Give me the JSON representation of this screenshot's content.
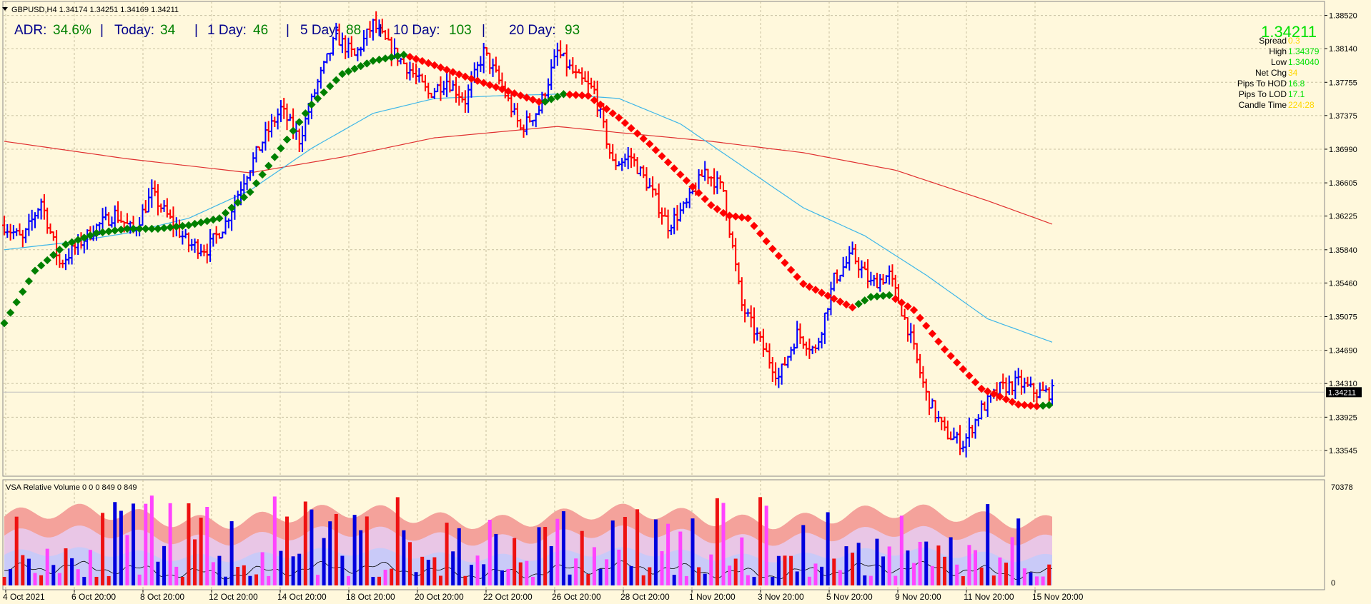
{
  "header": {
    "symbol_line": "GBPUSD,H4  1.34174 1.34251 1.34169 1.34211",
    "menu_arrow_icon": "triangle-down-icon"
  },
  "adr_line": {
    "adr_label": "ADR:",
    "adr_value": "34.6%",
    "sep1": "|",
    "today_label": "Today:",
    "today_value": "34",
    "sep2": "|",
    "d1_label": "1 Day:",
    "d1_value": "46",
    "sep3": "|",
    "d5_label": "5 Day:",
    "d5_value": "88",
    "sep4": "|",
    "d10_label": "10 Day:",
    "d10_value": "103",
    "sep5": "|",
    "d20_label": "20 Day:",
    "d20_value": "93"
  },
  "info_panel": {
    "price": "1.34211",
    "rows": [
      {
        "label": "Spread",
        "value": "0.3",
        "color": "#ffd700"
      },
      {
        "label": "High",
        "value": "1.34379",
        "color": "#00e000"
      },
      {
        "label": "Low",
        "value": "1.34040",
        "color": "#00e000"
      },
      {
        "label": "Net Chg",
        "value": "34",
        "color": "#ffd700"
      },
      {
        "label": "Pips To HOD",
        "value": "16.8",
        "color": "#00e000"
      },
      {
        "label": "Pips To LOD",
        "value": "17.1",
        "color": "#00e000"
      },
      {
        "label": "Candle Time",
        "value": "224:28",
        "color": "#ffd700"
      }
    ]
  },
  "volume_panel": {
    "title": "VSA Relative Volume 0 0 0 849 0 849",
    "max_label": "70378",
    "min_label": "0"
  },
  "colors": {
    "background": "#fff8dc",
    "grid": "#c8c0a0",
    "bull_bar": "#0000ff",
    "bear_bar": "#ff0000",
    "trend_up": "#008000",
    "trend_down": "#ff0000",
    "ma_fast": "#3eb6e8",
    "ma_slow": "#e03030",
    "accent_green": "#008000",
    "price_green": "#00e000",
    "price_label_bg": "#000000"
  },
  "chart_data": {
    "type": "line",
    "ylim": [
      1.3325,
      1.3868
    ],
    "price_ticks": [
      "1.38520",
      "1.38140",
      "1.37755",
      "1.37375",
      "1.36990",
      "1.36605",
      "1.36225",
      "1.35840",
      "1.35460",
      "1.35075",
      "1.34690",
      "1.34310",
      "1.33925",
      "1.33545"
    ],
    "current_price": 1.34211,
    "current_price_label": "1.34211",
    "x_ticks": [
      "4 Oct 2021",
      "6 Oct 20:00",
      "8 Oct 20:00",
      "12 Oct 20:00",
      "14 Oct 20:00",
      "18 Oct 20:00",
      "20 Oct 20:00",
      "22 Oct 20:00",
      "26 Oct 20:00",
      "28 Oct 20:00",
      "1 Nov 20:00",
      "3 Nov 20:00",
      "5 Nov 20:00",
      "9 Nov 20:00",
      "11 Nov 20:00",
      "15 Nov 20:00"
    ],
    "price_path": [
      [
        0,
        1.3612
      ],
      [
        6,
        1.3595
      ],
      [
        12,
        1.364
      ],
      [
        18,
        1.3568
      ],
      [
        24,
        1.359
      ],
      [
        30,
        1.361
      ],
      [
        36,
        1.3625
      ],
      [
        42,
        1.3605
      ],
      [
        48,
        1.3648
      ],
      [
        54,
        1.3618
      ],
      [
        60,
        1.359
      ],
      [
        66,
        1.3585
      ],
      [
        72,
        1.3615
      ],
      [
        78,
        1.3665
      ],
      [
        84,
        1.3708
      ],
      [
        90,
        1.3745
      ],
      [
        96,
        1.371
      ],
      [
        102,
        1.3775
      ],
      [
        108,
        1.3828
      ],
      [
        114,
        1.3805
      ],
      [
        120,
        1.3842
      ],
      [
        126,
        1.3812
      ],
      [
        132,
        1.379
      ],
      [
        138,
        1.3762
      ],
      [
        144,
        1.3778
      ],
      [
        150,
        1.3755
      ],
      [
        156,
        1.381
      ],
      [
        162,
        1.377
      ],
      [
        168,
        1.3722
      ],
      [
        174,
        1.3745
      ],
      [
        180,
        1.381
      ],
      [
        186,
        1.3782
      ],
      [
        192,
        1.3765
      ],
      [
        198,
        1.3682
      ],
      [
        204,
        1.369
      ],
      [
        210,
        1.3655
      ],
      [
        216,
        1.3612
      ],
      [
        222,
        1.3635
      ],
      [
        228,
        1.3675
      ],
      [
        234,
        1.3652
      ],
      [
        240,
        1.352
      ],
      [
        246,
        1.3478
      ],
      [
        252,
        1.3438
      ],
      [
        258,
        1.3488
      ],
      [
        264,
        1.3468
      ],
      [
        270,
        1.355
      ],
      [
        276,
        1.3578
      ],
      [
        282,
        1.3545
      ],
      [
        288,
        1.3555
      ],
      [
        294,
        1.3495
      ],
      [
        300,
        1.3418
      ],
      [
        306,
        1.3375
      ],
      [
        312,
        1.3362
      ],
      [
        318,
        1.3402
      ],
      [
        324,
        1.3425
      ],
      [
        330,
        1.3432
      ],
      [
        336,
        1.342
      ],
      [
        342,
        1.3421
      ]
    ],
    "trend_path": [
      [
        0,
        1.35
      ],
      [
        10,
        1.356
      ],
      [
        20,
        1.359
      ],
      [
        30,
        1.3603
      ],
      [
        40,
        1.3608
      ],
      [
        50,
        1.3608
      ],
      [
        60,
        1.3612
      ],
      [
        70,
        1.362
      ],
      [
        80,
        1.365
      ],
      [
        90,
        1.37
      ],
      [
        100,
        1.375
      ],
      [
        110,
        1.3785
      ],
      [
        120,
        1.38
      ],
      [
        130,
        1.3807
      ],
      [
        140,
        1.3795
      ],
      [
        150,
        1.3782
      ],
      [
        160,
        1.377
      ],
      [
        170,
        1.3758
      ],
      [
        175,
        1.3752
      ],
      [
        182,
        1.3762
      ],
      [
        190,
        1.376
      ],
      [
        200,
        1.3735
      ],
      [
        210,
        1.3705
      ],
      [
        220,
        1.367
      ],
      [
        230,
        1.3635
      ],
      [
        234,
        1.3626
      ],
      [
        236,
        1.3623
      ],
      [
        242,
        1.362
      ],
      [
        250,
        1.3585
      ],
      [
        260,
        1.3545
      ],
      [
        270,
        1.3528
      ],
      [
        276,
        1.3518
      ],
      [
        282,
        1.353
      ],
      [
        288,
        1.3532
      ],
      [
        296,
        1.3515
      ],
      [
        306,
        1.347
      ],
      [
        318,
        1.3425
      ],
      [
        330,
        1.3407
      ],
      [
        336,
        1.3405
      ],
      [
        342,
        1.3407
      ]
    ],
    "ma_fast": [
      [
        0,
        1.3584
      ],
      [
        20,
        1.3592
      ],
      [
        40,
        1.3603
      ],
      [
        60,
        1.362
      ],
      [
        80,
        1.3652
      ],
      [
        100,
        1.37
      ],
      [
        120,
        1.374
      ],
      [
        140,
        1.3757
      ],
      [
        160,
        1.376
      ],
      [
        180,
        1.3762
      ],
      [
        200,
        1.3757
      ],
      [
        220,
        1.3728
      ],
      [
        240,
        1.368
      ],
      [
        260,
        1.3632
      ],
      [
        280,
        1.36
      ],
      [
        300,
        1.3555
      ],
      [
        320,
        1.3505
      ],
      [
        342,
        1.3477
      ]
    ],
    "ma_slow": [
      [
        0,
        1.3708
      ],
      [
        40,
        1.3688
      ],
      [
        80,
        1.3672
      ],
      [
        110,
        1.369
      ],
      [
        140,
        1.3712
      ],
      [
        180,
        1.3725
      ],
      [
        200,
        1.3718
      ],
      [
        230,
        1.3708
      ],
      [
        260,
        1.3695
      ],
      [
        290,
        1.3675
      ],
      [
        320,
        1.364
      ],
      [
        342,
        1.3612
      ]
    ],
    "volume": {
      "bar_count": 342,
      "ylim": [
        0,
        70378
      ]
    }
  }
}
